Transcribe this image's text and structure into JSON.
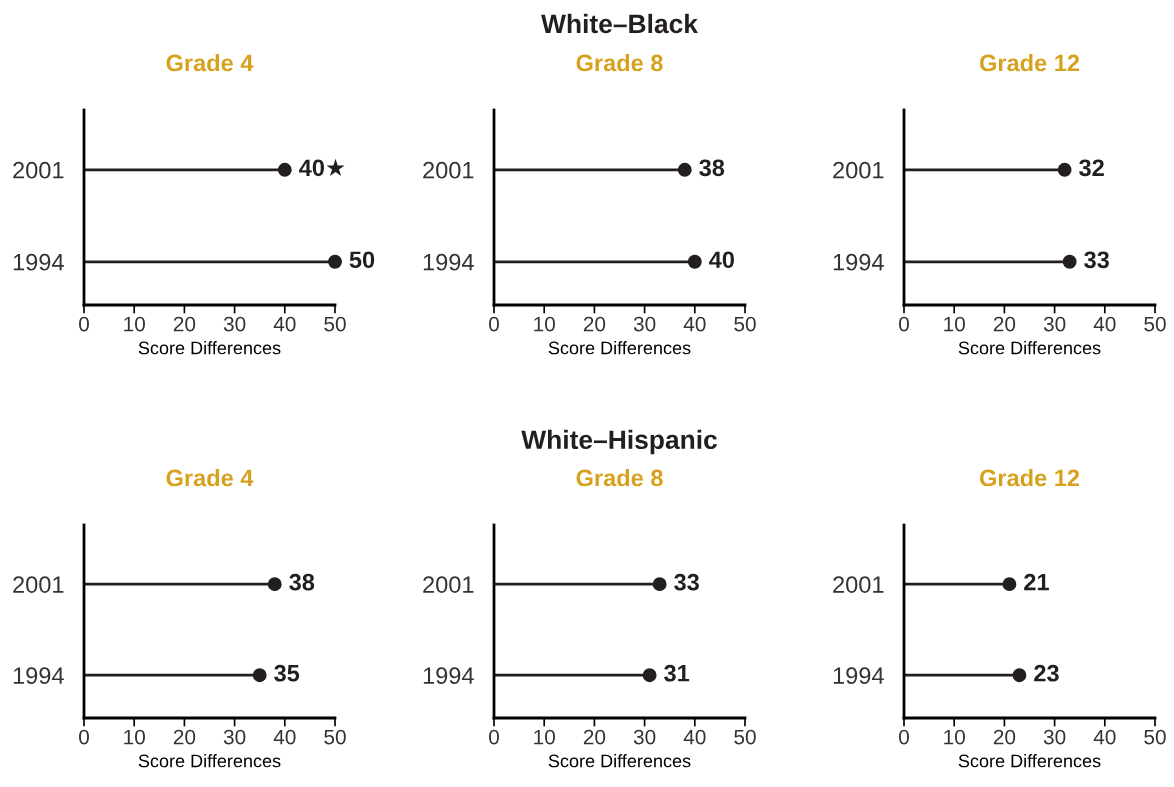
{
  "chart_data": [
    {
      "type": "lollipop",
      "orientation": "horizontal",
      "title": "Grade 4",
      "xlabel": "Score Differences",
      "categories": [
        "2001",
        "1994"
      ],
      "xlim": [
        0,
        50
      ],
      "xticks": [
        0,
        10,
        20,
        30,
        40,
        50
      ],
      "marker": "circle",
      "series": [
        {
          "color": "#231f20",
          "values": [
            40,
            50
          ],
          "value_labels": [
            "40★",
            "50"
          ]
        }
      ]
    },
    {
      "type": "lollipop",
      "orientation": "horizontal",
      "title": "Grade 8",
      "annotations": [
        "White–Black"
      ],
      "xlabel": "Score Differences",
      "categories": [
        "2001",
        "1994"
      ],
      "xlim": [
        0,
        50
      ],
      "xticks": [
        0,
        10,
        20,
        30,
        40,
        50
      ],
      "marker": "circle",
      "series": [
        {
          "color": "#231f20",
          "values": [
            38,
            40
          ],
          "value_labels": [
            "38",
            "40"
          ]
        }
      ]
    },
    {
      "type": "lollipop",
      "orientation": "horizontal",
      "title": "Grade 12",
      "xlabel": "Score Differences",
      "categories": [
        "2001",
        "1994"
      ],
      "xlim": [
        0,
        50
      ],
      "xticks": [
        0,
        10,
        20,
        30,
        40,
        50
      ],
      "marker": "circle",
      "series": [
        {
          "color": "#231f20",
          "values": [
            32,
            33
          ],
          "value_labels": [
            "32",
            "33"
          ]
        }
      ]
    },
    {
      "type": "lollipop",
      "orientation": "horizontal",
      "title": "Grade 4",
      "xlabel": "Score Differences",
      "categories": [
        "2001",
        "1994"
      ],
      "xlim": [
        0,
        50
      ],
      "xticks": [
        0,
        10,
        20,
        30,
        40,
        50
      ],
      "marker": "circle",
      "series": [
        {
          "color": "#231f20",
          "values": [
            38,
            35
          ],
          "value_labels": [
            "38",
            "35"
          ]
        }
      ]
    },
    {
      "type": "lollipop",
      "orientation": "horizontal",
      "title": "Grade 8",
      "annotations": [
        "White–Hispanic"
      ],
      "xlabel": "Score Differences",
      "categories": [
        "2001",
        "1994"
      ],
      "xlim": [
        0,
        50
      ],
      "xticks": [
        0,
        10,
        20,
        30,
        40,
        50
      ],
      "marker": "circle",
      "series": [
        {
          "color": "#231f20",
          "values": [
            33,
            31
          ],
          "value_labels": [
            "33",
            "31"
          ]
        }
      ]
    },
    {
      "type": "lollipop",
      "orientation": "horizontal",
      "title": "Grade 12",
      "xlabel": "Score Differences",
      "categories": [
        "2001",
        "1994"
      ],
      "xlim": [
        0,
        50
      ],
      "xticks": [
        0,
        10,
        20,
        30,
        40,
        50
      ],
      "marker": "circle",
      "series": [
        {
          "color": "#231f20",
          "values": [
            21,
            23
          ],
          "value_labels": [
            "21",
            "23"
          ]
        }
      ]
    }
  ]
}
